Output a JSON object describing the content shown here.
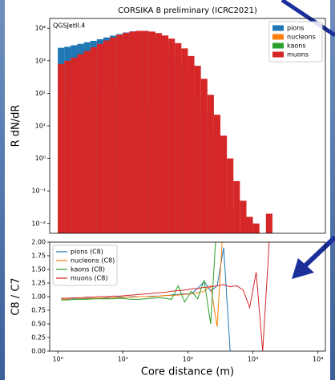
{
  "chart_data": [
    {
      "type": "histogram",
      "title": "CORSIKA 8 preliminary (ICRC2021)",
      "annotation": "QGSJetII.4",
      "ylabel": "R dN/dR",
      "xscale": "log",
      "yscale": "log",
      "legend": "upper right",
      "xlim": [
        0.75,
        13000
      ],
      "ylim": [
        0.005,
        20000
      ],
      "yticks": [
        {
          "value": 0.01,
          "label": "10⁻²"
        },
        {
          "value": 0.1,
          "label": "10⁻¹"
        },
        {
          "value": 1,
          "label": "10⁰"
        },
        {
          "value": 10,
          "label": "10¹"
        },
        {
          "value": 100,
          "label": "10²"
        },
        {
          "value": 1000,
          "label": "10³"
        },
        {
          "value": 10000,
          "label": "10⁴"
        }
      ],
      "bins": [
        1,
        1.259,
        1.585,
        1.995,
        2.512,
        3.162,
        3.981,
        5.012,
        6.31,
        7.943,
        10,
        12.59,
        15.85,
        19.95,
        25.12,
        31.62,
        39.81,
        50.12,
        63.1,
        79.43,
        100,
        125.9,
        158.5,
        199.5,
        251.2,
        316.2,
        398.1,
        501.2,
        631,
        794.3,
        1000,
        1259,
        1585,
        1995
      ],
      "series": [
        {
          "name": "pions",
          "color": "#1f77b4",
          "values": [
            2500,
            2700,
            3000,
            3300,
            3700,
            4100,
            4600,
            5200,
            5900,
            6600,
            7400,
            8000,
            8000,
            7000,
            5500,
            4000,
            2800,
            1800,
            1000,
            500,
            220,
            80,
            25,
            6,
            1.2,
            0.2,
            0.03,
            0,
            0,
            0,
            0,
            0,
            0
          ]
        },
        {
          "name": "nucleons",
          "color": "#ff7f0e",
          "values": [
            20,
            22,
            25,
            28,
            30,
            32,
            34,
            35,
            35,
            34,
            32,
            28,
            24,
            20,
            15,
            10,
            6,
            3,
            1.5,
            0.6,
            0.2,
            0.05,
            0,
            0,
            0,
            0,
            0,
            0,
            0,
            0,
            0,
            0,
            0
          ]
        },
        {
          "name": "kaons",
          "color": "#2ca02c",
          "values": [
            60,
            65,
            70,
            75,
            80,
            85,
            90,
            95,
            95,
            90,
            85,
            78,
            70,
            60,
            48,
            35,
            24,
            14,
            7,
            3,
            1,
            0.3,
            0.05,
            0,
            0,
            0,
            0,
            0,
            0,
            0,
            0,
            0,
            0
          ]
        },
        {
          "name": "muons",
          "color": "#d62728",
          "values": [
            800,
            1000,
            1250,
            1600,
            2000,
            2600,
            3300,
            4200,
            5200,
            6300,
            7200,
            7900,
            8300,
            8300,
            7900,
            7100,
            6000,
            4800,
            3500,
            2400,
            1400,
            700,
            280,
            90,
            22,
            5,
            1,
            0.2,
            0.05,
            0.016,
            0.01,
            0,
            0.02
          ]
        }
      ]
    },
    {
      "type": "line",
      "ylabel": "C8 / C7",
      "xlabel": "Core distance (m)",
      "xscale": "log",
      "legend": "upper left",
      "xlim": [
        0.75,
        13000
      ],
      "ylim": [
        0,
        2
      ],
      "xticks": [
        {
          "value": 1,
          "label": "10⁰"
        },
        {
          "value": 10,
          "label": "10¹"
        },
        {
          "value": 100,
          "label": "10²"
        },
        {
          "value": 1000,
          "label": "10³"
        },
        {
          "value": 10000,
          "label": "10⁴"
        }
      ],
      "yticks": [
        {
          "value": 0,
          "label": "0.00"
        },
        {
          "value": 0.25,
          "label": "0.25"
        },
        {
          "value": 0.5,
          "label": "0.50"
        },
        {
          "value": 0.75,
          "label": "0.75"
        },
        {
          "value": 1,
          "label": "1.00"
        },
        {
          "value": 1.25,
          "label": "1.25"
        },
        {
          "value": 1.5,
          "label": "1.50"
        },
        {
          "value": 1.75,
          "label": "1.75"
        },
        {
          "value": 2,
          "label": "2.00"
        }
      ],
      "x": [
        1.122,
        1.413,
        1.778,
        2.239,
        2.818,
        3.548,
        4.467,
        5.623,
        7.079,
        8.913,
        11.22,
        14.13,
        17.78,
        22.39,
        28.18,
        35.48,
        44.67,
        56.23,
        70.79,
        89.13,
        112.2,
        141.3,
        177.8,
        223.9,
        281.8,
        354.8,
        446.7,
        562.3,
        707.9,
        891.3,
        1122,
        1413,
        1778
      ],
      "series": [
        {
          "name": "pions (C8)",
          "color": "#1f77b4",
          "values": [
            0.95,
            0.95,
            0.96,
            0.96,
            0.97,
            0.97,
            0.97,
            0.98,
            0.98,
            0.99,
            0.99,
            1.0,
            1.0,
            1.0,
            1.01,
            1.01,
            1.02,
            1.03,
            1.04,
            1.05,
            1.05,
            1.15,
            1.28,
            1.1,
            1.2,
            1.9,
            0.0,
            null,
            null,
            null,
            null,
            null,
            null
          ]
        },
        {
          "name": "nucleons (C8)",
          "color": "#ff7f0e",
          "values": [
            0.95,
            0.95,
            0.95,
            0.96,
            0.96,
            0.97,
            0.97,
            0.97,
            0.98,
            0.98,
            0.99,
            0.99,
            1.0,
            1.0,
            1.0,
            1.01,
            1.02,
            1.02,
            1.03,
            1.04,
            1.05,
            1.07,
            1.1,
            1.2,
            0.45,
            2.5,
            null,
            null,
            null,
            null,
            null,
            null,
            null
          ]
        },
        {
          "name": "kaons (C8)",
          "color": "#2ca02c",
          "values": [
            0.94,
            0.94,
            0.95,
            0.95,
            0.95,
            0.96,
            0.96,
            0.96,
            0.96,
            0.97,
            0.96,
            0.95,
            0.95,
            0.96,
            0.97,
            0.98,
            0.97,
            0.95,
            1.2,
            0.9,
            1.1,
            0.96,
            1.3,
            0.5,
            2.5,
            null,
            null,
            null,
            null,
            null,
            null,
            null,
            null
          ]
        },
        {
          "name": "muons (C8)",
          "color": "#d62728",
          "values": [
            0.97,
            0.97,
            0.98,
            0.98,
            0.99,
            0.99,
            1.0,
            1.0,
            1.01,
            1.01,
            1.02,
            1.03,
            1.04,
            1.05,
            1.06,
            1.07,
            1.08,
            1.1,
            1.11,
            1.12,
            1.14,
            1.15,
            1.17,
            1.18,
            1.2,
            1.22,
            1.18,
            1.2,
            1.12,
            0.8,
            1.45,
            0.0,
            2.0
          ]
        }
      ]
    }
  ]
}
